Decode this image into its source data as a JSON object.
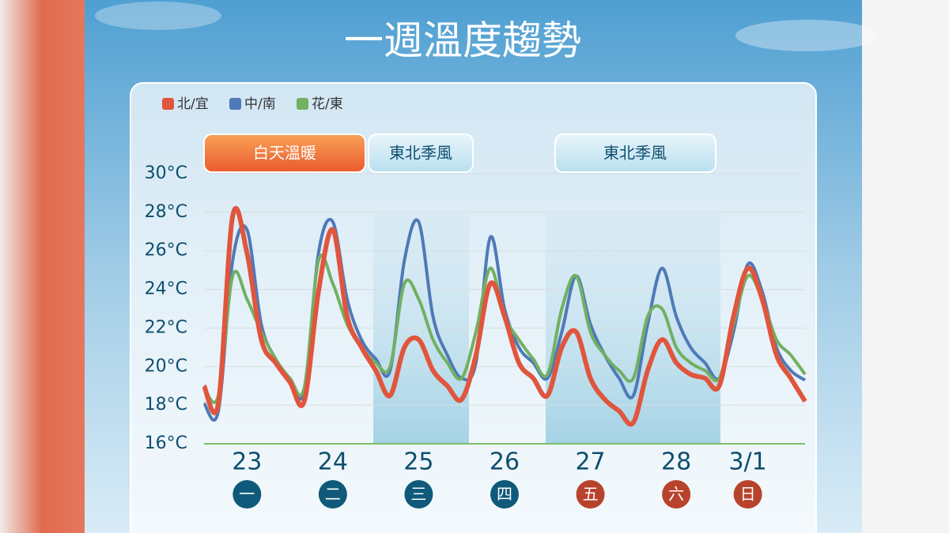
{
  "title": "一週溫度趨勢",
  "chart_data": {
    "type": "line",
    "categories": [
      null,
      null,
      null,
      "23",
      null,
      null,
      null,
      null,
      null,
      "24",
      null,
      null,
      null,
      null,
      null,
      "25",
      null,
      null,
      null,
      null,
      null,
      "26",
      null,
      null,
      null,
      null,
      null,
      "27",
      null,
      null,
      null,
      null,
      null,
      "28",
      null,
      null,
      null,
      null,
      "3/1",
      null,
      null,
      null,
      null
    ],
    "weekdays": [
      "一",
      "二",
      "三",
      "四",
      "五",
      "六",
      "日"
    ],
    "weekday_colors": [
      "#0f5a7a",
      "#0f5a7a",
      "#0f5a7a",
      "#0f5a7a",
      "#b8432c",
      "#b8432c",
      "#b8432c"
    ],
    "annotations": [
      "白天溫暖",
      "東北季風",
      "東北季風"
    ],
    "series": [
      {
        "name": "北/宜",
        "color": "#e0553d",
        "values": [
          19.0,
          18.1,
          27.8,
          25.9,
          21.4,
          20.2,
          19.2,
          18.2,
          23.9,
          27.1,
          22.6,
          21.0,
          19.8,
          18.5,
          21.0,
          21.4,
          19.8,
          19.0,
          18.3,
          20.6,
          24.3,
          22.6,
          20.2,
          19.4,
          18.5,
          21.0,
          21.8,
          19.4,
          18.3,
          17.7,
          17.1,
          19.8,
          21.4,
          20.2,
          19.6,
          19.4,
          19.0,
          22.6,
          25.1,
          23.5,
          20.6,
          19.4,
          18.2
        ]
      },
      {
        "name": "中/南",
        "color": "#4f79b8",
        "values": [
          18.1,
          17.7,
          25.5,
          27.1,
          22.2,
          20.4,
          19.4,
          18.7,
          25.9,
          27.5,
          23.5,
          21.4,
          20.4,
          19.8,
          25.5,
          27.5,
          22.6,
          20.6,
          19.4,
          20.2,
          26.7,
          23.0,
          21.0,
          20.2,
          19.4,
          21.8,
          24.7,
          22.2,
          20.6,
          19.4,
          18.5,
          22.2,
          25.1,
          22.6,
          21.0,
          20.2,
          19.4,
          21.8,
          25.3,
          23.9,
          21.0,
          19.8,
          19.3
        ]
      },
      {
        "name": "花/東",
        "color": "#72b062",
        "values": [
          18.9,
          18.5,
          24.7,
          23.5,
          21.8,
          20.4,
          19.4,
          18.9,
          25.5,
          24.3,
          22.2,
          21.0,
          20.2,
          20.0,
          24.3,
          23.5,
          21.4,
          20.2,
          19.4,
          21.8,
          25.1,
          22.6,
          21.4,
          20.4,
          19.6,
          23.0,
          24.7,
          21.8,
          20.6,
          19.8,
          19.4,
          22.6,
          23.0,
          21.0,
          20.2,
          19.8,
          19.4,
          22.2,
          24.7,
          23.5,
          21.4,
          20.6,
          19.6
        ]
      }
    ],
    "ylim": [
      16,
      30
    ],
    "yticks": [
      {
        "value": 16,
        "label": "16°C"
      },
      {
        "value": 18,
        "label": "18°C"
      },
      {
        "value": 20,
        "label": "20°C"
      },
      {
        "value": 22,
        "label": "22°C"
      },
      {
        "value": 24,
        "label": "24°C"
      },
      {
        "value": 26,
        "label": "26°C"
      },
      {
        "value": 28,
        "label": "28°C"
      },
      {
        "value": 30,
        "label": "30°C"
      }
    ],
    "grid": true
  }
}
